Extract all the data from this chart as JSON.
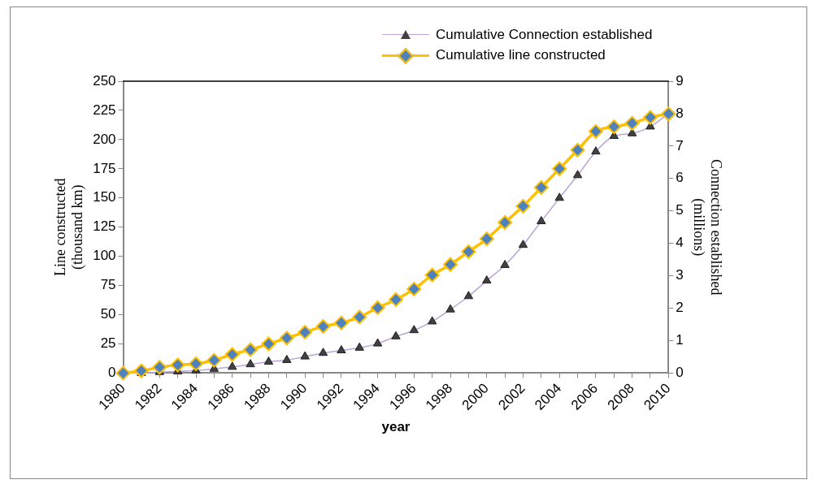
{
  "chart_data": {
    "type": "line",
    "xlabel": "year",
    "ylabel": "Line constructed (thousand km)",
    "y2label": "Connection established (millions)",
    "x": [
      1980,
      1981,
      1982,
      1983,
      1984,
      1985,
      1986,
      1987,
      1988,
      1989,
      1990,
      1991,
      1992,
      1993,
      1994,
      1995,
      1996,
      1997,
      1998,
      1999,
      2000,
      2001,
      2002,
      2003,
      2004,
      2005,
      2006,
      2007,
      2008,
      2009,
      2010
    ],
    "series": [
      {
        "name": "Cumulative Connection established",
        "color": "#b9a5d6",
        "axis": "y2",
        "marker": "triangle",
        "values": [
          0,
          0,
          0.03,
          0.05,
          0.08,
          0.13,
          0.19,
          0.27,
          0.35,
          0.4,
          0.51,
          0.62,
          0.7,
          0.78,
          0.91,
          1.13,
          1.32,
          1.59,
          1.96,
          2.37,
          2.85,
          3.33,
          3.95,
          4.68,
          5.4,
          6.1,
          6.83,
          7.31,
          7.39,
          7.6,
          8.01
        ]
      },
      {
        "name": "Cumulative line constructed",
        "color": "#ffc000",
        "marker": "diamond",
        "values": [
          0,
          2,
          5,
          7,
          8,
          11,
          16,
          20,
          25,
          30,
          35,
          40,
          43,
          48,
          56,
          63,
          72,
          84,
          93,
          104,
          115,
          129,
          143,
          159,
          175,
          191,
          207,
          211,
          214,
          219,
          222
        ]
      }
    ],
    "xlim": [
      1980,
      2010
    ],
    "xticks": [
      1980,
      {
        "value": 1981,
        "label": null
      },
      1982,
      {
        "value": 1983,
        "label": null
      },
      1984,
      {
        "value": 1985,
        "label": null
      },
      1986,
      {
        "value": 1987,
        "label": null
      },
      1988,
      {
        "value": 1989,
        "label": null
      },
      1990,
      {
        "value": 1991,
        "label": null
      },
      1992,
      {
        "value": 1993,
        "label": null
      },
      1994,
      {
        "value": 1995,
        "label": null
      },
      1996,
      {
        "value": 1997,
        "label": null
      },
      1998,
      {
        "value": 1999,
        "label": null
      },
      2000,
      {
        "value": 2001,
        "label": null
      },
      2002,
      {
        "value": 2003,
        "label": null
      },
      2004,
      {
        "value": 2005,
        "label": null
      },
      2006,
      {
        "value": 2007,
        "label": null
      },
      2008,
      {
        "value": 2009,
        "label": null
      },
      2010
    ],
    "ylim": [
      0,
      250
    ],
    "yticks": [
      0,
      25,
      50,
      75,
      100,
      125,
      150,
      175,
      200,
      225,
      250
    ],
    "y2lim": [
      0,
      9
    ],
    "y2ticks": [
      0,
      1,
      2,
      3,
      4,
      5,
      6,
      7,
      8,
      9
    ],
    "grid": false,
    "legend": "top"
  }
}
